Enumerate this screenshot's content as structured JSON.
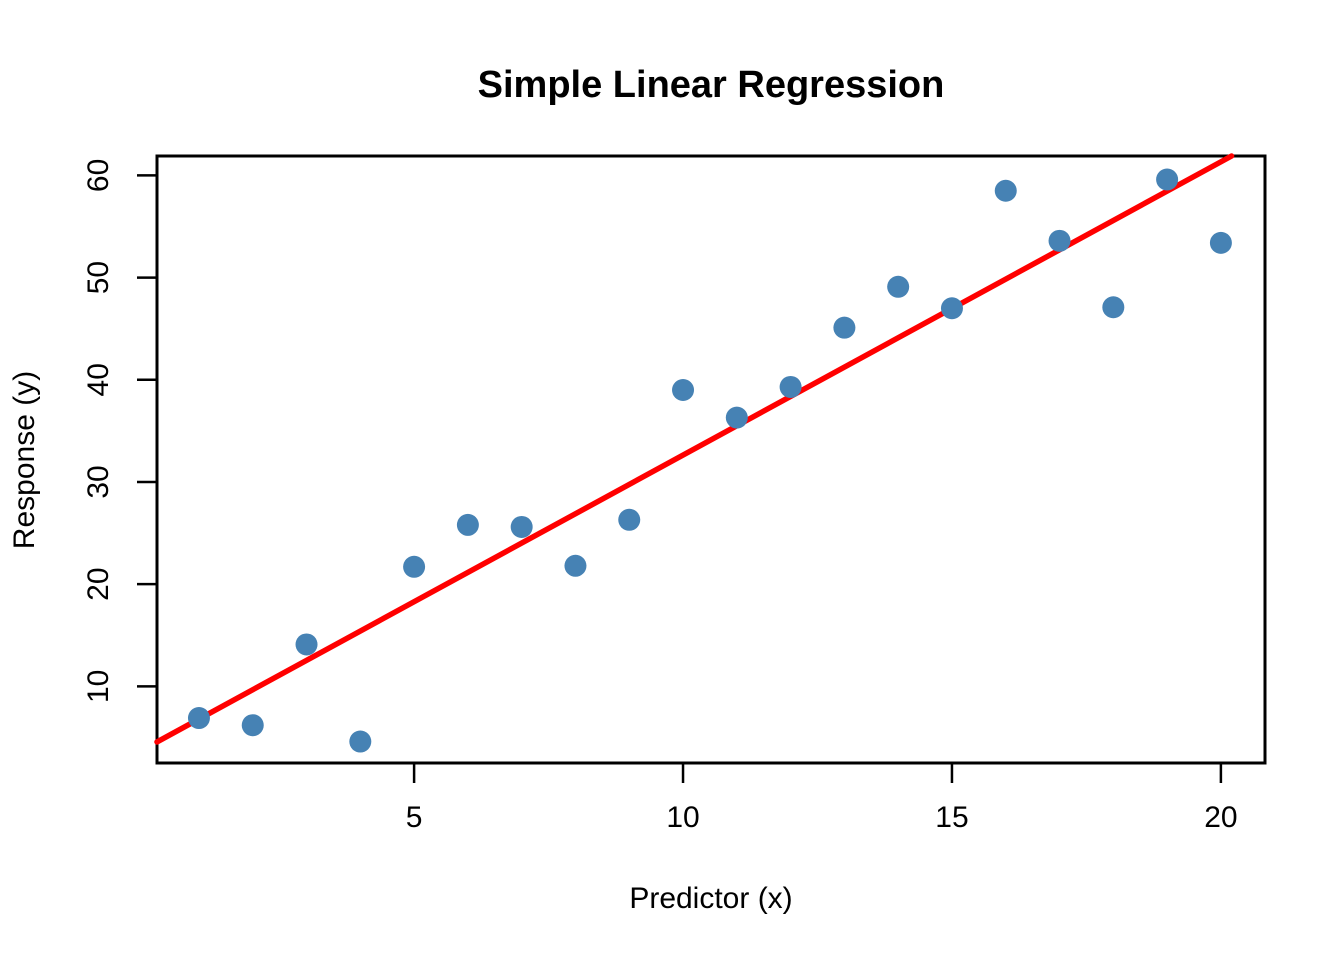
{
  "chart_data": {
    "type": "scatter",
    "title": "Simple Linear Regression",
    "xlabel": "Predictor (x)",
    "ylabel": "Response (y)",
    "x": [
      1,
      2,
      3,
      4,
      5,
      6,
      7,
      8,
      9,
      10,
      11,
      12,
      13,
      14,
      15,
      16,
      17,
      18,
      19,
      20
    ],
    "y": [
      6.9,
      6.2,
      14.1,
      4.6,
      21.7,
      25.8,
      25.6,
      21.8,
      26.3,
      39.0,
      36.3,
      39.3,
      45.1,
      49.1,
      47.0,
      58.5,
      53.6,
      47.1,
      59.6,
      53.4
    ],
    "x_ticks": [
      5,
      10,
      15,
      20
    ],
    "y_ticks": [
      10,
      20,
      30,
      40,
      50,
      60
    ],
    "xlim": [
      0.22,
      20.82
    ],
    "ylim": [
      2.5,
      61.9
    ],
    "regression_line": {
      "intercept": 3.93,
      "slope": 2.87
    },
    "point_color": "#4682B4",
    "line_color": "#FF0000",
    "axis_color": "#000000",
    "grid": false,
    "legend": null
  }
}
